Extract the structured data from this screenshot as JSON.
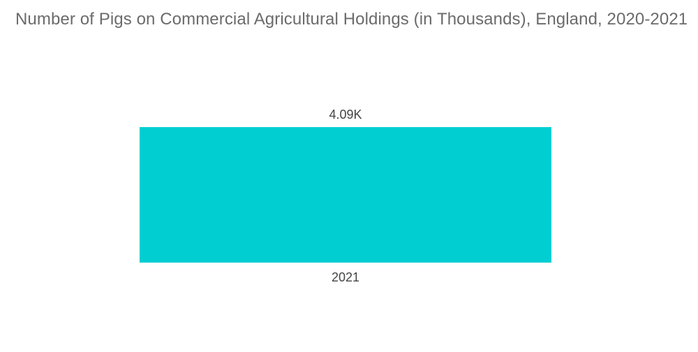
{
  "title": "Number of Pigs on Commercial Agricultural Holdings (in Thousands), England, 2020-2021",
  "colors": {
    "bar": "#00ced1",
    "text": "#444444",
    "title": "#6b6b6b"
  },
  "chart_data": {
    "type": "bar",
    "title": "Number of Pigs on Commercial Agricultural Holdings (in Thousands), England, 2020-2021",
    "categories": [
      "2021"
    ],
    "values": [
      4090
    ],
    "data_labels": [
      "4.09K"
    ],
    "xlabel": "",
    "ylabel": "",
    "ylim": [
      0,
      4090
    ],
    "grid": false,
    "legend": "none"
  }
}
